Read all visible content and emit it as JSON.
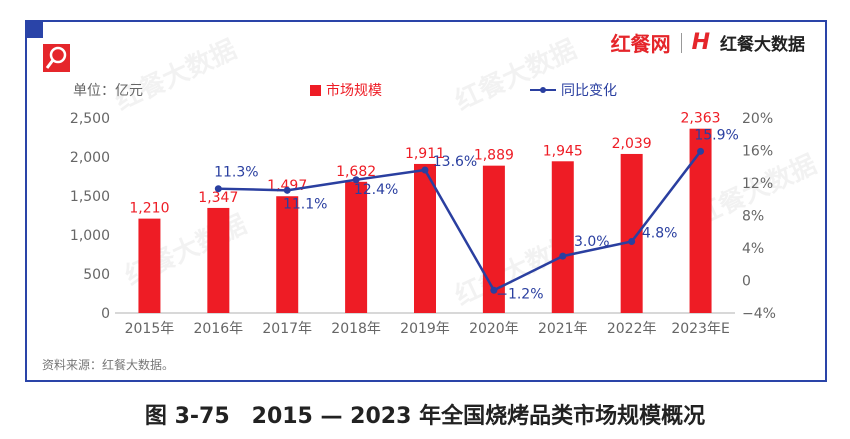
{
  "brand": {
    "site": "红餐网",
    "logo_mark": "H",
    "name": "红餐大数据"
  },
  "watermark": "红餐大数据",
  "unit": "单位：亿元",
  "legend": {
    "bar": "市场规模",
    "line": "同比变化"
  },
  "source": "资料来源：红餐大数据。",
  "caption": "图 3-75　2015 — 2023 年全国烧烤品类市场规模概况",
  "colors": {
    "bar": "#ee1c25",
    "line": "#2a3fa0",
    "frame": "#2a44a8"
  },
  "chart_data": {
    "type": "bar+line",
    "categories": [
      "2015年",
      "2016年",
      "2017年",
      "2018年",
      "2019年",
      "2020年",
      "2021年",
      "2022年",
      "2023年E"
    ],
    "series": [
      {
        "name": "市场规模",
        "type": "bar",
        "axis": "left",
        "values": [
          1210,
          1347,
          1497,
          1682,
          1911,
          1889,
          1945,
          2039,
          2363
        ],
        "labels": [
          "1,210",
          "1,347",
          "1,497",
          "1,682",
          "1,911",
          "1,889",
          "1,945",
          "2,039",
          "2,363"
        ]
      },
      {
        "name": "同比变化",
        "type": "line",
        "axis": "right",
        "values": [
          null,
          11.3,
          11.1,
          12.4,
          13.6,
          -1.2,
          3.0,
          4.8,
          15.9
        ],
        "labels": [
          "",
          "11.3%",
          "11.1%",
          "12.4%",
          "13.6%",
          "−1.2%",
          "3.0%",
          "4.8%",
          "15.9%"
        ]
      }
    ],
    "left_axis": {
      "ylim": [
        0,
        2500
      ],
      "ticks": [
        "0",
        "500",
        "1,000",
        "1,500",
        "2,000",
        "2,500"
      ]
    },
    "right_axis": {
      "ylim": [
        -4,
        20
      ],
      "ticks": [
        "−4%",
        "0",
        "4%",
        "8%",
        "12%",
        "16%",
        "20%"
      ]
    },
    "grid": false,
    "legend_position": "top"
  }
}
